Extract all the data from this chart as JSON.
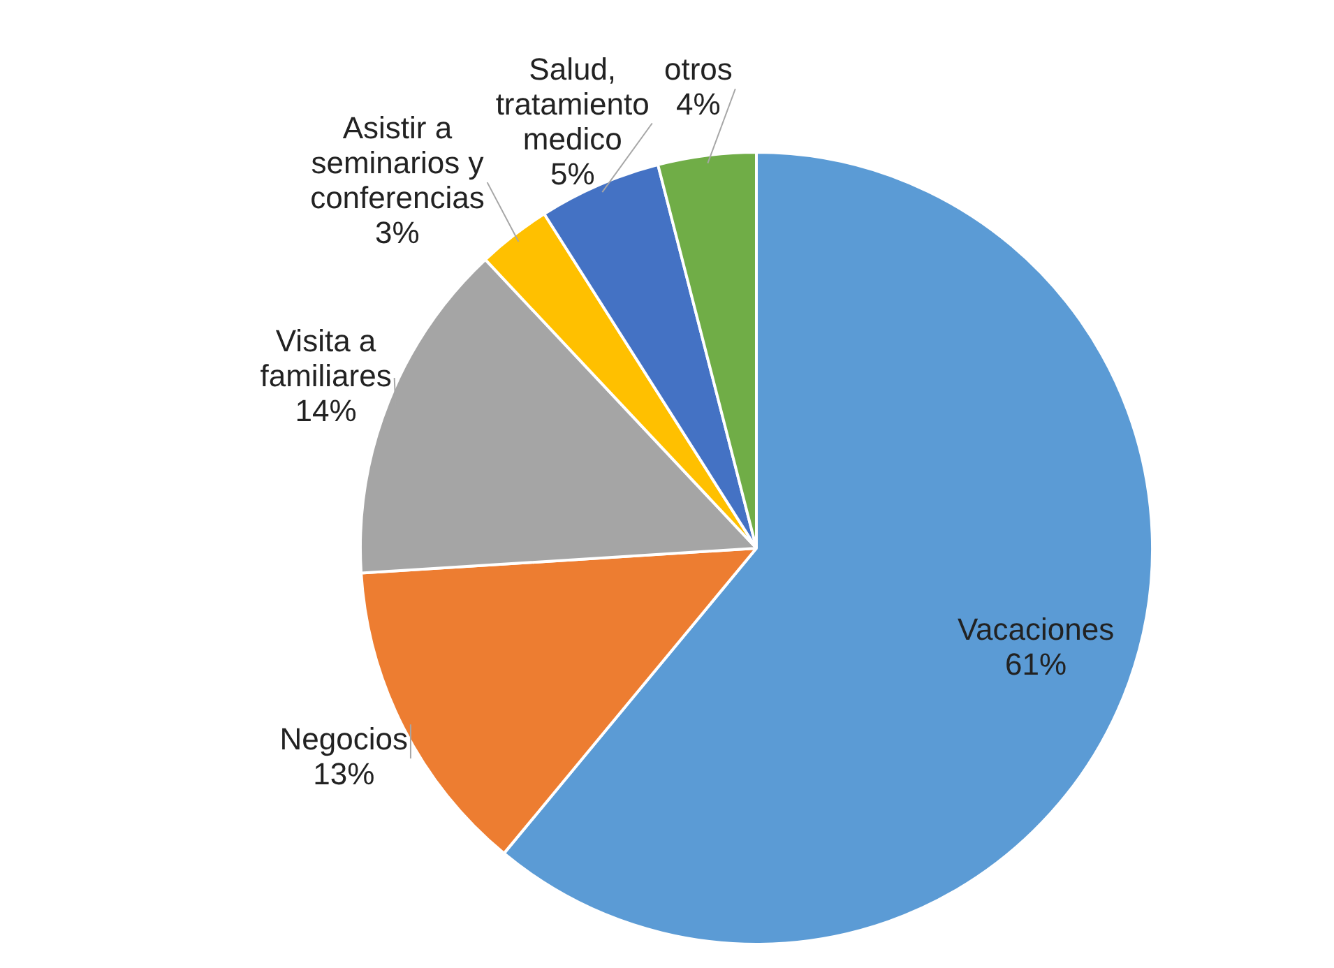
{
  "chart_data": {
    "type": "pie",
    "categories": [
      "Vacaciones",
      "Negocios",
      "Visita a familiares",
      "Asistir a seminarios y conferencias",
      "Salud, tratamiento medico",
      "otros"
    ],
    "values": [
      61,
      13,
      14,
      3,
      5,
      4
    ],
    "value_labels": [
      "61%",
      "13%",
      "14%",
      "3%",
      "5%",
      "4%"
    ],
    "colors": [
      "#5b9bd5",
      "#ed7d31",
      "#a5a5a5",
      "#ffc000",
      "#4472c4",
      "#70ad47"
    ],
    "legend": false
  }
}
